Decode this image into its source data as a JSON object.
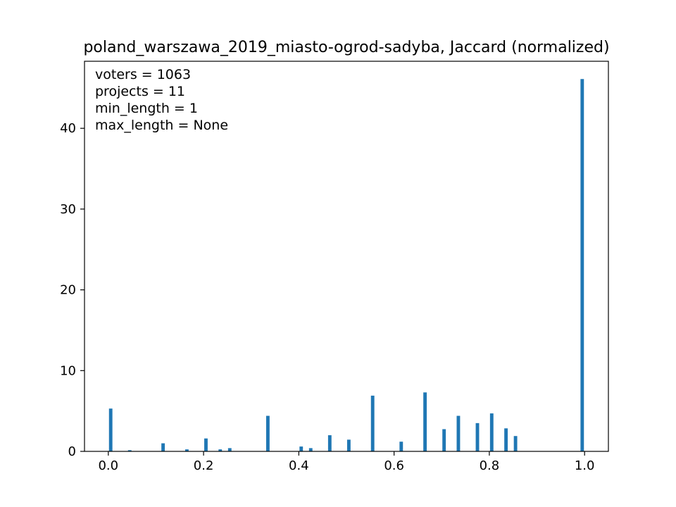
{
  "chart_data": {
    "type": "bar",
    "title": "poland_warszawa_2019_miasto-ogrod-sadyba, Jaccard (normalized)",
    "xlabel": "",
    "ylabel": "",
    "xlim": [
      -0.05,
      1.05
    ],
    "ylim": [
      0,
      48.3
    ],
    "x_ticks": [
      0.0,
      0.2,
      0.4,
      0.6,
      0.8,
      1.0
    ],
    "x_tick_labels": [
      "0.0",
      "0.2",
      "0.4",
      "0.6",
      "0.8",
      "1.0"
    ],
    "y_ticks": [
      0,
      10,
      20,
      30,
      40
    ],
    "y_tick_labels": [
      "0",
      "10",
      "20",
      "30",
      "40"
    ],
    "bar_width": 0.01,
    "bar_color": "#1f77b4",
    "grid": false,
    "legend": null,
    "annotations": [
      "voters = 1063",
      "projects = 11",
      "min_length = 1",
      "max_length = None"
    ],
    "x": [
      0.005,
      0.045,
      0.115,
      0.165,
      0.205,
      0.235,
      0.255,
      0.335,
      0.405,
      0.425,
      0.465,
      0.505,
      0.555,
      0.615,
      0.665,
      0.705,
      0.735,
      0.775,
      0.805,
      0.835,
      0.855,
      0.995
    ],
    "values": [
      5.3,
      0.15,
      1.0,
      0.25,
      1.6,
      0.25,
      0.4,
      4.4,
      0.6,
      0.4,
      2.0,
      1.45,
      6.9,
      1.2,
      7.3,
      2.75,
      4.4,
      3.5,
      4.7,
      2.85,
      1.9,
      46.1
    ]
  }
}
